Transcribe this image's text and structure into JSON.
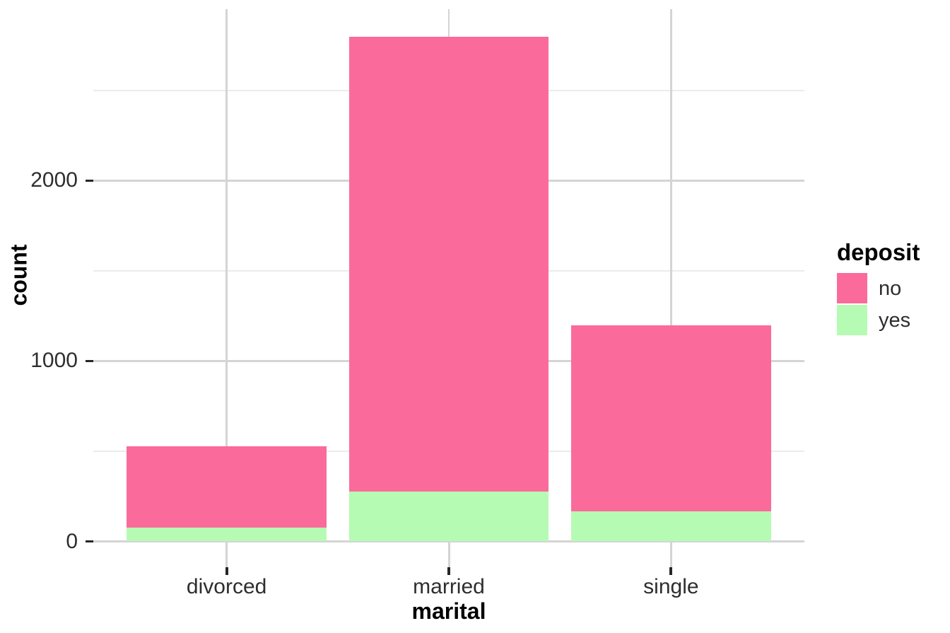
{
  "chart_data": {
    "type": "bar",
    "stacked": true,
    "title": "",
    "xlabel": "marital",
    "ylabel": "count",
    "categories": [
      "divorced",
      "married",
      "single"
    ],
    "series": [
      {
        "name": "no",
        "color": "#FA6B9B",
        "values": [
          451,
          2520,
          1029
        ]
      },
      {
        "name": "yes",
        "color": "#B6FBB4",
        "values": [
          77,
          277,
          167
        ]
      }
    ],
    "totals": [
      528,
      2797,
      1196
    ],
    "y_major_ticks": [
      0,
      1000,
      2000
    ],
    "y_minor_ticks": [
      500,
      1500,
      2500
    ],
    "ylim": [
      0,
      2950
    ],
    "bar_width_fraction": 0.9,
    "grid": "on",
    "stack_order": "first-series-on-top",
    "legend": {
      "title": "deposit",
      "position": "right",
      "entries": [
        "no",
        "yes"
      ]
    },
    "colors": {
      "major_grid": "#d4d4d4",
      "minor_grid": "#ebebeb",
      "tick_mark": "#262626",
      "axis_text": "#2e2e2e",
      "title_text": "#000000",
      "background": "#ffffff"
    }
  }
}
